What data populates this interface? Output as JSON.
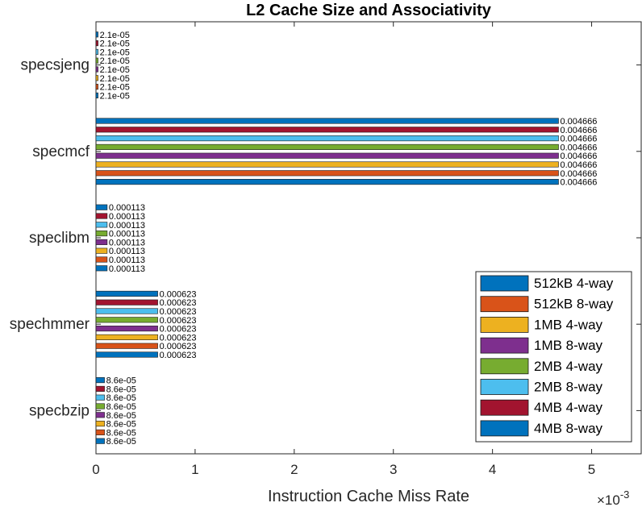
{
  "chart_data": {
    "type": "bar",
    "orientation": "horizontal",
    "title": "L2 Cache Size and Associativity",
    "xlabel": "Instruction Cache Miss Rate",
    "ylabel": "",
    "axis_multiplier": "×10",
    "axis_multiplier_exp": "-3",
    "xlim": [
      0,
      0.0055
    ],
    "xticks": [
      {
        "value": 0,
        "label": "0"
      },
      {
        "value": 0.001,
        "label": "1"
      },
      {
        "value": 0.002,
        "label": "2"
      },
      {
        "value": 0.003,
        "label": "3"
      },
      {
        "value": 0.004,
        "label": "4"
      },
      {
        "value": 0.005,
        "label": "5"
      }
    ],
    "categories": [
      "specbzip",
      "spechmmer",
      "speclibm",
      "specmcf",
      "specsjeng"
    ],
    "legend_position": "bottom-right",
    "grid": false,
    "series": [
      {
        "name": "512kB 4-way",
        "color": "#0072BD",
        "values": [
          8.6e-05,
          0.000623,
          0.000113,
          0.004666,
          2.1e-05
        ],
        "labels": [
          "8.6e-05",
          "0.000623",
          "0.000113",
          "0.004666",
          "2.1e-05"
        ]
      },
      {
        "name": "512kB 8-way",
        "color": "#D95319",
        "values": [
          8.6e-05,
          0.000623,
          0.000113,
          0.004666,
          2.1e-05
        ],
        "labels": [
          "8.6e-05",
          "0.000623",
          "0.000113",
          "0.004666",
          "2.1e-05"
        ]
      },
      {
        "name": "1MB 4-way",
        "color": "#EDB120",
        "values": [
          8.6e-05,
          0.000623,
          0.000113,
          0.004666,
          2.1e-05
        ],
        "labels": [
          "8.6e-05",
          "0.000623",
          "0.000113",
          "0.004666",
          "2.1e-05"
        ]
      },
      {
        "name": "1MB 8-way",
        "color": "#7E2F8E",
        "values": [
          8.6e-05,
          0.000623,
          0.000113,
          0.004666,
          2.1e-05
        ],
        "labels": [
          "8.6e-05",
          "0.000623",
          "0.000113",
          "0.004666",
          "2.1e-05"
        ]
      },
      {
        "name": "2MB 4-way",
        "color": "#77AC30",
        "values": [
          8.6e-05,
          0.000623,
          0.000113,
          0.004666,
          2.1e-05
        ],
        "labels": [
          "8.6e-05",
          "0.000623",
          "0.000113",
          "0.004666",
          "2.1e-05"
        ]
      },
      {
        "name": "2MB 8-way",
        "color": "#4DBEEE",
        "values": [
          8.6e-05,
          0.000623,
          0.000113,
          0.004666,
          2.1e-05
        ],
        "labels": [
          "8.6e-05",
          "0.000623",
          "0.000113",
          "0.004666",
          "2.1e-05"
        ]
      },
      {
        "name": "4MB 4-way",
        "color": "#A2142F",
        "values": [
          8.6e-05,
          0.000623,
          0.000113,
          0.004666,
          2.1e-05
        ],
        "labels": [
          "8.6e-05",
          "0.000623",
          "0.000113",
          "0.004666",
          "2.1e-05"
        ]
      },
      {
        "name": "4MB 8-way",
        "color": "#0072BD",
        "values": [
          8.6e-05,
          0.000623,
          0.000113,
          0.004666,
          2.1e-05
        ],
        "labels": [
          "8.6e-05",
          "0.000623",
          "0.000113",
          "0.004666",
          "2.1e-05"
        ]
      }
    ]
  }
}
